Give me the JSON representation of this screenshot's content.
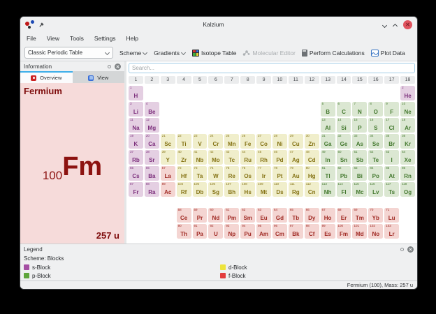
{
  "window": {
    "title": "Kalzium"
  },
  "menu": {
    "items": [
      "File",
      "View",
      "Tools",
      "Settings",
      "Help"
    ]
  },
  "toolbar": {
    "table_select_value": "Classic Periodic Table",
    "scheme_label": "Scheme",
    "gradients_label": "Gradients",
    "isotope_table_label": "Isotope Table",
    "molecular_editor_label": "Molecular Editor",
    "perform_calculations_label": "Perform Calculations",
    "plot_data_label": "Plot Data"
  },
  "info_dock": {
    "title": "Information",
    "tabs": [
      {
        "label": "Overview",
        "active": true
      },
      {
        "label": "View",
        "active": false
      }
    ],
    "overview": {
      "element_name": "Fermium",
      "atomic_number": "100",
      "symbol": "Fm",
      "mass": "257 u"
    }
  },
  "search": {
    "placeholder": "Search..."
  },
  "periodic_table": {
    "groups": [
      "1",
      "2",
      "3",
      "4",
      "5",
      "6",
      "7",
      "8",
      "9",
      "10",
      "11",
      "12",
      "13",
      "14",
      "15",
      "16",
      "17",
      "18"
    ],
    "block_colors": {
      "s": {
        "bg": "#e4cfe2",
        "text": "#7c2f7c"
      },
      "p": {
        "bg": "#dbe7d2",
        "text": "#44792f"
      },
      "d": {
        "bg": "#f0eecb",
        "text": "#857315"
      },
      "f": {
        "bg": "#f4d5d2",
        "text": "#a02a24"
      }
    },
    "periods": [
      [
        [
          1,
          "H",
          "s",
          1
        ],
        [
          2,
          "He",
          "s",
          18
        ]
      ],
      [
        [
          3,
          "Li",
          "s",
          1
        ],
        [
          4,
          "Be",
          "s",
          2
        ],
        [
          5,
          "B",
          "p",
          13
        ],
        [
          6,
          "C",
          "p",
          14
        ],
        [
          7,
          "N",
          "p",
          15
        ],
        [
          8,
          "O",
          "p",
          16
        ],
        [
          9,
          "F",
          "p",
          17
        ],
        [
          10,
          "Ne",
          "p",
          18
        ]
      ],
      [
        [
          11,
          "Na",
          "s",
          1
        ],
        [
          12,
          "Mg",
          "s",
          2
        ],
        [
          13,
          "Al",
          "p",
          13
        ],
        [
          14,
          "Si",
          "p",
          14
        ],
        [
          15,
          "P",
          "p",
          15
        ],
        [
          16,
          "S",
          "p",
          16
        ],
        [
          17,
          "Cl",
          "p",
          17
        ],
        [
          18,
          "Ar",
          "p",
          18
        ]
      ],
      [
        [
          19,
          "K",
          "s",
          1
        ],
        [
          20,
          "Ca",
          "s",
          2
        ],
        [
          21,
          "Sc",
          "d",
          3
        ],
        [
          22,
          "Ti",
          "d",
          4
        ],
        [
          23,
          "V",
          "d",
          5
        ],
        [
          24,
          "Cr",
          "d",
          6
        ],
        [
          25,
          "Mn",
          "d",
          7
        ],
        [
          26,
          "Fe",
          "d",
          8
        ],
        [
          27,
          "Co",
          "d",
          9
        ],
        [
          28,
          "Ni",
          "d",
          10
        ],
        [
          29,
          "Cu",
          "d",
          11
        ],
        [
          30,
          "Zn",
          "d",
          12
        ],
        [
          31,
          "Ga",
          "p",
          13
        ],
        [
          32,
          "Ge",
          "p",
          14
        ],
        [
          33,
          "As",
          "p",
          15
        ],
        [
          34,
          "Se",
          "p",
          16
        ],
        [
          35,
          "Br",
          "p",
          17
        ],
        [
          36,
          "Kr",
          "p",
          18
        ]
      ],
      [
        [
          37,
          "Rb",
          "s",
          1
        ],
        [
          38,
          "Sr",
          "s",
          2
        ],
        [
          39,
          "Y",
          "d",
          3
        ],
        [
          40,
          "Zr",
          "d",
          4
        ],
        [
          41,
          "Nb",
          "d",
          5
        ],
        [
          42,
          "Mo",
          "d",
          6
        ],
        [
          43,
          "Tc",
          "d",
          7
        ],
        [
          44,
          "Ru",
          "d",
          8
        ],
        [
          45,
          "Rh",
          "d",
          9
        ],
        [
          46,
          "Pd",
          "d",
          10
        ],
        [
          47,
          "Ag",
          "d",
          11
        ],
        [
          48,
          "Cd",
          "d",
          12
        ],
        [
          49,
          "In",
          "p",
          13
        ],
        [
          50,
          "Sn",
          "p",
          14
        ],
        [
          51,
          "Sb",
          "p",
          15
        ],
        [
          52,
          "Te",
          "p",
          16
        ],
        [
          53,
          "I",
          "p",
          17
        ],
        [
          54,
          "Xe",
          "p",
          18
        ]
      ],
      [
        [
          55,
          "Cs",
          "s",
          1
        ],
        [
          56,
          "Ba",
          "s",
          2
        ],
        [
          57,
          "La",
          "f",
          3
        ],
        [
          72,
          "Hf",
          "d",
          4
        ],
        [
          73,
          "Ta",
          "d",
          5
        ],
        [
          74,
          "W",
          "d",
          6
        ],
        [
          75,
          "Re",
          "d",
          7
        ],
        [
          76,
          "Os",
          "d",
          8
        ],
        [
          77,
          "Ir",
          "d",
          9
        ],
        [
          78,
          "Pt",
          "d",
          10
        ],
        [
          79,
          "Au",
          "d",
          11
        ],
        [
          80,
          "Hg",
          "d",
          12
        ],
        [
          81,
          "Tl",
          "p",
          13
        ],
        [
          82,
          "Pb",
          "p",
          14
        ],
        [
          83,
          "Bi",
          "p",
          15
        ],
        [
          84,
          "Po",
          "p",
          16
        ],
        [
          85,
          "At",
          "p",
          17
        ],
        [
          86,
          "Rn",
          "p",
          18
        ]
      ],
      [
        [
          87,
          "Fr",
          "s",
          1
        ],
        [
          88,
          "Ra",
          "s",
          2
        ],
        [
          89,
          "Ac",
          "f",
          3
        ],
        [
          104,
          "Rf",
          "d",
          4
        ],
        [
          105,
          "Db",
          "d",
          5
        ],
        [
          106,
          "Sg",
          "d",
          6
        ],
        [
          107,
          "Bh",
          "d",
          7
        ],
        [
          108,
          "Hs",
          "d",
          8
        ],
        [
          109,
          "Mt",
          "d",
          9
        ],
        [
          110,
          "Ds",
          "d",
          10
        ],
        [
          111,
          "Rg",
          "d",
          11
        ],
        [
          112,
          "Cn",
          "d",
          12
        ],
        [
          113,
          "Nh",
          "p",
          13
        ],
        [
          114,
          "Fl",
          "p",
          14
        ],
        [
          115,
          "Mc",
          "p",
          15
        ],
        [
          116,
          "Lv",
          "p",
          16
        ],
        [
          117,
          "Ts",
          "p",
          17
        ],
        [
          118,
          "Og",
          "p",
          18
        ]
      ]
    ],
    "f_rows": [
      [
        [
          58,
          "Ce",
          "f",
          4
        ],
        [
          59,
          "Pr",
          "f",
          5
        ],
        [
          60,
          "Nd",
          "f",
          6
        ],
        [
          61,
          "Pm",
          "f",
          7
        ],
        [
          62,
          "Sm",
          "f",
          8
        ],
        [
          63,
          "Eu",
          "f",
          9
        ],
        [
          64,
          "Gd",
          "f",
          10
        ],
        [
          65,
          "Tb",
          "f",
          11
        ],
        [
          66,
          "Dy",
          "f",
          12
        ],
        [
          67,
          "Ho",
          "f",
          13
        ],
        [
          68,
          "Er",
          "f",
          14
        ],
        [
          69,
          "Tm",
          "f",
          15
        ],
        [
          70,
          "Yb",
          "f",
          16
        ],
        [
          71,
          "Lu",
          "f",
          17
        ]
      ],
      [
        [
          90,
          "Th",
          "f",
          4
        ],
        [
          91,
          "Pa",
          "f",
          5
        ],
        [
          92,
          "U",
          "f",
          6
        ],
        [
          93,
          "Np",
          "f",
          7
        ],
        [
          94,
          "Pu",
          "f",
          8
        ],
        [
          95,
          "Am",
          "f",
          9
        ],
        [
          96,
          "Cm",
          "f",
          10
        ],
        [
          97,
          "Bk",
          "f",
          11
        ],
        [
          98,
          "Cf",
          "f",
          12
        ],
        [
          99,
          "Es",
          "f",
          13
        ],
        [
          100,
          "Fm",
          "f",
          14
        ],
        [
          101,
          "Md",
          "f",
          15
        ],
        [
          102,
          "No",
          "f",
          16
        ],
        [
          103,
          "Lr",
          "f",
          17
        ]
      ]
    ]
  },
  "legend": {
    "title": "Legend",
    "scheme": "Scheme: Blocks",
    "items": [
      {
        "label": "s-Block",
        "color": "#a44fa3"
      },
      {
        "label": "d-Block",
        "color": "#ede43c"
      },
      {
        "label": "p-Block",
        "color": "#5ea53b"
      },
      {
        "label": "f-Block",
        "color": "#e33d3d"
      }
    ]
  },
  "statusbar": {
    "text": "Fermium (100), Mass: 257 u"
  }
}
